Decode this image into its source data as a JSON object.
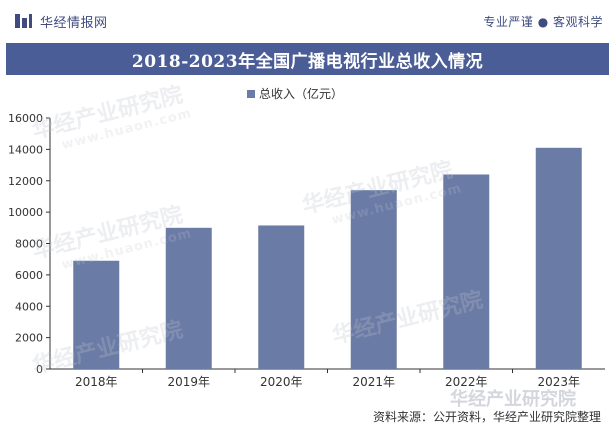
{
  "header": {
    "brand": "华经情报网",
    "slogan": "专业严谨 ● 客观科学"
  },
  "colors": {
    "brand": "#404c80",
    "banner": "#4a5d97",
    "bar": "#6a7ba6"
  },
  "watermark": {
    "text": "华经产业研究院",
    "url": "www.huaon.com"
  },
  "source": "资料来源：公开资料，华经产业研究院整理",
  "chart_data": {
    "type": "bar",
    "title": "2018-2023年全国广播电视行业总收入情况",
    "categories": [
      "2018年",
      "2019年",
      "2020年",
      "2021年",
      "2022年",
      "2023年"
    ],
    "series": [
      {
        "name": "总收入（亿元）",
        "values": [
          6900,
          9000,
          9150,
          11400,
          12400,
          14100
        ]
      }
    ],
    "ylim": [
      0,
      16000
    ],
    "yticks": [
      "0",
      "2000",
      "4000",
      "6000",
      "8000",
      "10000",
      "12000",
      "14000",
      "16000"
    ],
    "legend_position": "top-center",
    "grid": false
  }
}
